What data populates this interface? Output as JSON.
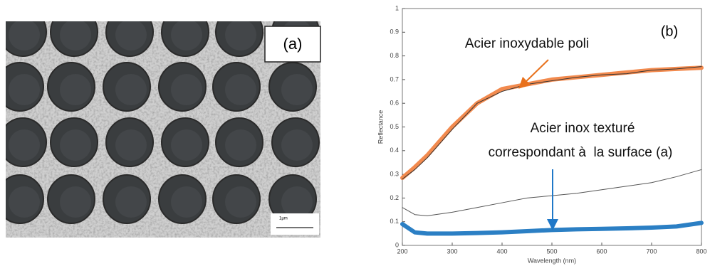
{
  "panel_a": {
    "label": "(a)",
    "scale_label": "1µm"
  },
  "chart_data": {
    "type": "line",
    "panel_label": "(b)",
    "x_label": "Wavelength (nm)",
    "y_label": "Reflectance",
    "annotations": [
      "Acier inoxydable poli",
      "Acier inox texturé",
      "correspondant à  la surface (a)"
    ],
    "x": [
      200,
      225,
      250,
      300,
      350,
      400,
      450,
      500,
      550,
      600,
      650,
      700,
      750,
      800
    ],
    "series": [
      {
        "color": "#f28a4e",
        "width": 6,
        "values": [
          0.285,
          0.33,
          0.38,
          0.5,
          0.6,
          0.66,
          0.68,
          0.7,
          0.71,
          0.72,
          0.73,
          0.74,
          0.745,
          0.75
        ]
      },
      {
        "color": "#333333",
        "width": 1,
        "values": [
          0.28,
          0.32,
          0.37,
          0.49,
          0.6,
          0.65,
          0.68,
          0.695,
          0.71,
          0.72,
          0.725,
          0.74,
          0.745,
          0.755
        ]
      },
      {
        "color": "#555555",
        "width": 1,
        "values": [
          0.16,
          0.13,
          0.125,
          0.14,
          0.16,
          0.18,
          0.2,
          0.21,
          0.22,
          0.235,
          0.25,
          0.265,
          0.29,
          0.32
        ]
      },
      {
        "color": "#2b7fc4",
        "width": 6,
        "values": [
          0.09,
          0.055,
          0.05,
          0.05,
          0.052,
          0.055,
          0.06,
          0.065,
          0.068,
          0.07,
          0.072,
          0.075,
          0.08,
          0.095
        ]
      }
    ],
    "xlim": [
      200,
      800
    ],
    "ylim": [
      0,
      1
    ],
    "xticks": [
      200,
      300,
      400,
      500,
      600,
      700,
      800
    ],
    "yticks": [
      0,
      0.1,
      0.2,
      0.3,
      0.4,
      0.5,
      0.6,
      0.7,
      0.8,
      0.9,
      1
    ]
  }
}
